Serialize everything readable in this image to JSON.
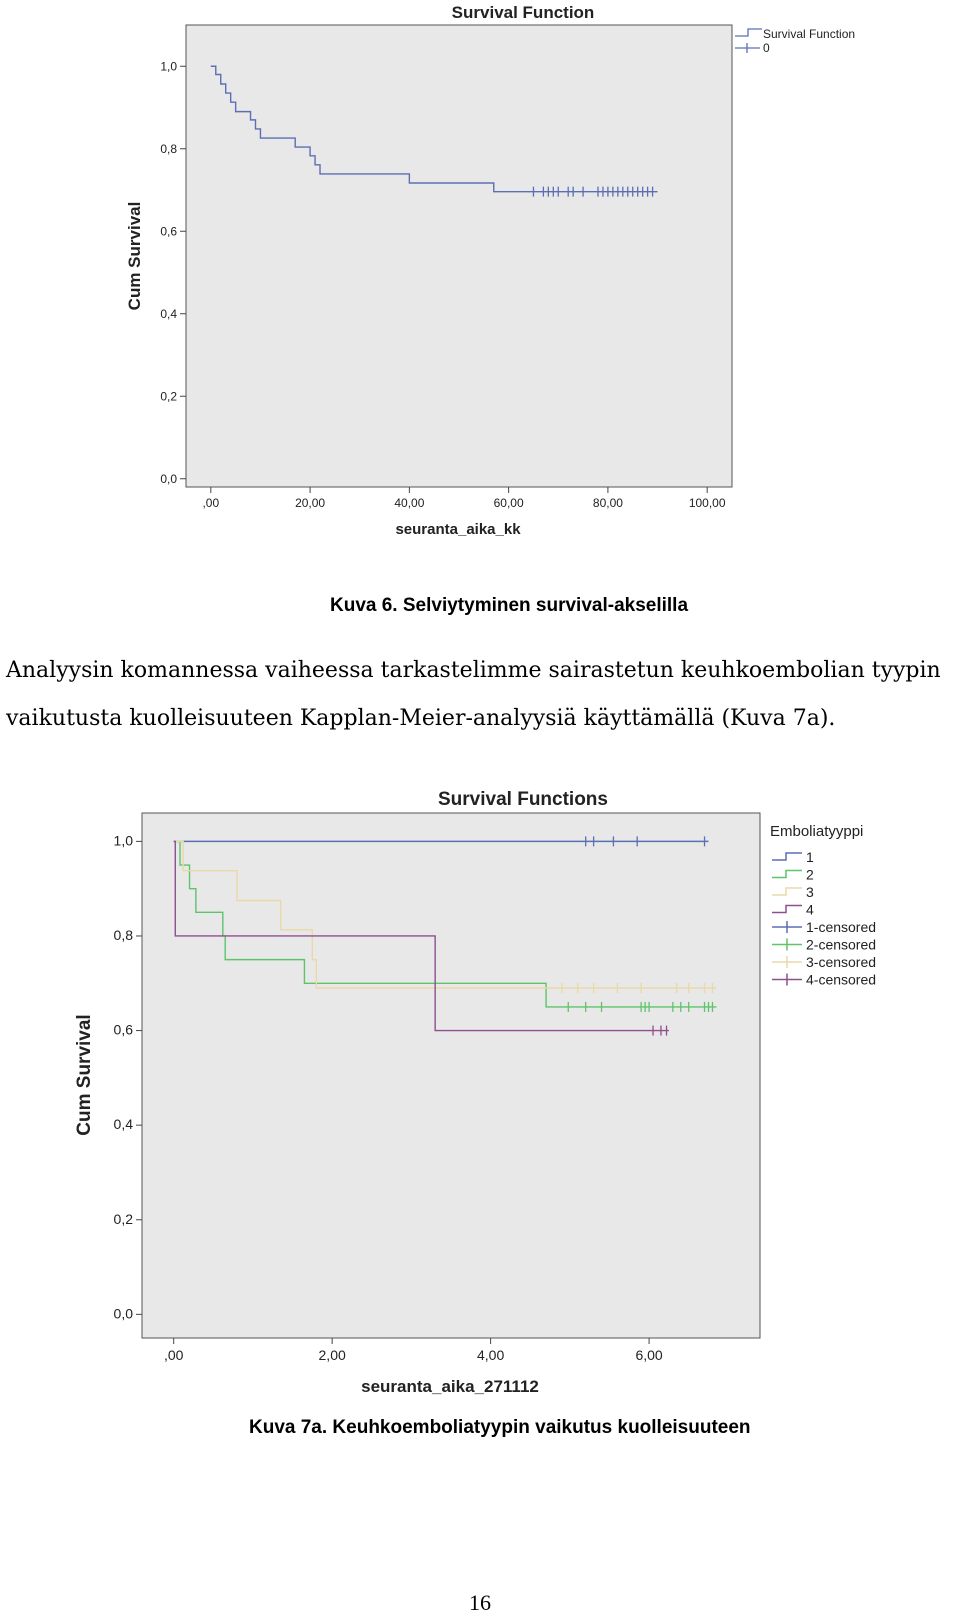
{
  "chart_data": [
    {
      "type": "line",
      "title": "Survival Function",
      "xlabel": "seuranta_aika_kk",
      "ylabel": "Cum Survival",
      "xlim": [
        -5,
        105
      ],
      "ylim": [
        -0.02,
        1.1
      ],
      "xticks": [
        ",00",
        "20,00",
        "40,00",
        "60,00",
        "80,00",
        "100,00"
      ],
      "yticks": [
        "0,0",
        "0,2",
        "0,4",
        "0,6",
        "0,8",
        "1,0"
      ],
      "grid": false,
      "legend_position": "top-right",
      "legend": [
        "Survival Function",
        "0"
      ],
      "colors": {
        "line": "#5b6fb5",
        "plot_bg": "#e8e8e8"
      },
      "series": [
        {
          "name": "Survival Function",
          "steps": [
            [
              0,
              1.0
            ],
            [
              1,
              0.98
            ],
            [
              2,
              0.957
            ],
            [
              3,
              0.935
            ],
            [
              4,
              0.913
            ],
            [
              5,
              0.89
            ],
            [
              8,
              0.87
            ],
            [
              9,
              0.848
            ],
            [
              10,
              0.826
            ],
            [
              17,
              0.804
            ],
            [
              20,
              0.783
            ],
            [
              21,
              0.761
            ],
            [
              22,
              0.739
            ],
            [
              40,
              0.717
            ],
            [
              57,
              0.696
            ],
            [
              90,
              0.696
            ]
          ],
          "censored": [
            65,
            67,
            68,
            69,
            70,
            72,
            73,
            75,
            78,
            79,
            80,
            81,
            82,
            83,
            84,
            85,
            86,
            87,
            88,
            89
          ]
        }
      ]
    },
    {
      "type": "line",
      "title": "Survival Functions",
      "xlabel": "seuranta_aika_271112",
      "ylabel": "Cum Survival",
      "xlim": [
        -0.4,
        7.4
      ],
      "ylim": [
        -0.05,
        1.06
      ],
      "xticks": [
        ",00",
        "2,00",
        "4,00",
        "6,00"
      ],
      "yticks": [
        "0,0",
        "0,2",
        "0,4",
        "0,6",
        "0,8",
        "1,0"
      ],
      "grid": false,
      "legend_position": "top-right",
      "legend_title": "Emboliatyyppi",
      "legend": [
        "1",
        "2",
        "3",
        "4",
        "1-censored",
        "2-censored",
        "3-censored",
        "4-censored"
      ],
      "colors": {
        "1": "#5b6fb5",
        "2": "#5ec46a",
        "3": "#ead8a8",
        "4": "#8e4f8e",
        "plot_bg": "#e8e8e8"
      },
      "series": [
        {
          "name": "1",
          "steps": [
            [
              0,
              1.0
            ],
            [
              6.75,
              1.0
            ]
          ],
          "censored": [
            5.2,
            5.3,
            5.55,
            5.85,
            6.7
          ]
        },
        {
          "name": "2",
          "steps": [
            [
              0,
              1.0
            ],
            [
              0.08,
              0.95
            ],
            [
              0.2,
              0.9
            ],
            [
              0.28,
              0.85
            ],
            [
              0.62,
              0.8
            ],
            [
              0.65,
              0.75
            ],
            [
              1.65,
              0.7
            ],
            [
              4.7,
              0.65
            ],
            [
              6.85,
              0.65
            ]
          ],
          "censored": [
            4.98,
            5.2,
            5.4,
            5.9,
            5.95,
            6.0,
            6.3,
            6.4,
            6.5,
            6.7,
            6.75,
            6.8
          ]
        },
        {
          "name": "3",
          "steps": [
            [
              0,
              1.0
            ],
            [
              0.12,
              0.938
            ],
            [
              0.8,
              0.875
            ],
            [
              1.35,
              0.813
            ],
            [
              1.75,
              0.75
            ],
            [
              1.8,
              0.69
            ],
            [
              6.85,
              0.69
            ]
          ],
          "censored": [
            4.9,
            5.1,
            5.3,
            5.6,
            5.9,
            6.35,
            6.5,
            6.7,
            6.8
          ]
        },
        {
          "name": "4",
          "steps": [
            [
              0,
              1.0
            ],
            [
              0.02,
              0.8
            ],
            [
              3.3,
              0.6
            ],
            [
              6.25,
              0.6
            ]
          ],
          "censored": [
            6.05,
            6.15,
            6.22
          ]
        }
      ]
    }
  ],
  "caption_1": "Kuva 6. Selviytyminen survival-akselilla",
  "paragraph": {
    "line1": "Analyysin komannessa vaiheessa tarkastelimme sairastetun keuhkoembolian tyypin",
    "line2": "vaikutusta kuolleisuuteen Kapplan-Meier-analyysiä käyttämällä (Kuva 7a)."
  },
  "caption_2": "Kuva 7a. Keuhkoemboliatyypin vaikutus kuolleisuuteen",
  "page_number": "16"
}
